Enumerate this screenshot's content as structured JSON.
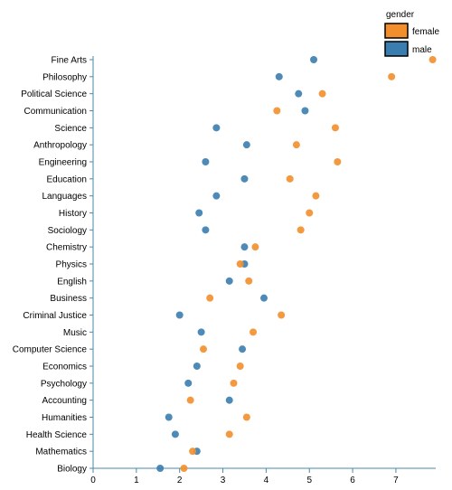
{
  "chart_data": {
    "type": "scatter",
    "categories": [
      "Fine Arts",
      "Philosophy",
      "Political Science",
      "Communication",
      "Science",
      "Anthropology",
      "Engineering",
      "Education",
      "Languages",
      "History",
      "Sociology",
      "Chemistry",
      "Physics",
      "English",
      "Business",
      "Criminal Justice",
      "Music",
      "Computer Science",
      "Economics",
      "Psychology",
      "Accounting",
      "Humanities",
      "Health Science",
      "Mathematics",
      "Biology"
    ],
    "series": [
      {
        "name": "male",
        "color": "#3a7db0",
        "values": [
          5.1,
          4.3,
          4.75,
          4.9,
          2.85,
          3.55,
          2.6,
          3.5,
          2.85,
          2.45,
          2.6,
          3.5,
          3.5,
          3.15,
          3.95,
          2.0,
          2.5,
          3.45,
          2.4,
          2.2,
          3.15,
          1.75,
          1.9,
          2.4,
          1.55
        ]
      },
      {
        "name": "female",
        "color": "#f28f2c",
        "values": [
          7.85,
          6.9,
          5.3,
          4.25,
          5.6,
          4.7,
          5.65,
          4.55,
          5.15,
          5.0,
          4.8,
          3.75,
          3.4,
          3.6,
          2.7,
          4.35,
          3.7,
          2.55,
          3.4,
          3.25,
          2.25,
          3.55,
          3.15,
          2.3,
          2.1
        ]
      }
    ],
    "xticks": [
      "0",
      "1",
      "2",
      "3",
      "4",
      "5",
      "6",
      "7"
    ],
    "xlim": [
      0,
      7.9
    ],
    "legend": {
      "title": "gender",
      "placement": "top-right",
      "entries": [
        "female",
        "male"
      ]
    },
    "grid": false
  }
}
